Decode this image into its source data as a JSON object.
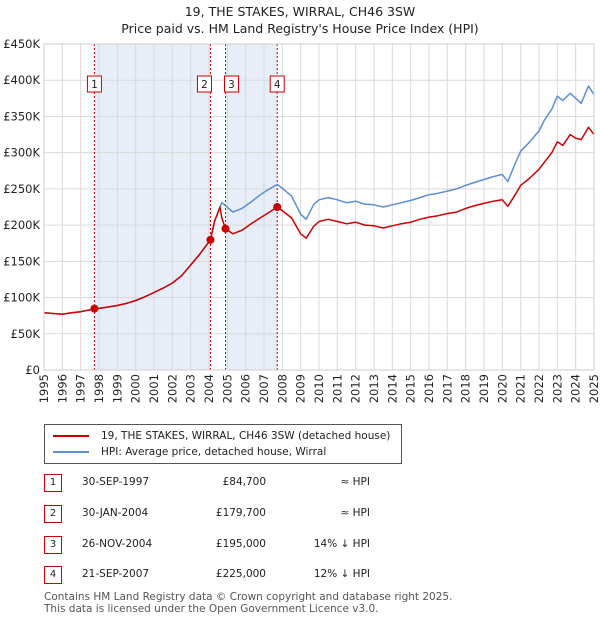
{
  "chart_data": {
    "type": "line",
    "title": "19, THE STAKES, WIRRAL, CH46 3SW",
    "subtitle": "Price paid vs. HM Land Registry's House Price Index (HPI)",
    "xlim": [
      1995,
      2025
    ],
    "ylim": [
      0,
      450000
    ],
    "y_ticks": [
      0,
      50000,
      100000,
      150000,
      200000,
      250000,
      300000,
      350000,
      400000,
      450000
    ],
    "y_tick_labels": [
      "£0",
      "£50K",
      "£100K",
      "£150K",
      "£200K",
      "£250K",
      "£300K",
      "£350K",
      "£400K",
      "£450K"
    ],
    "x_ticks": [
      1995,
      1996,
      1997,
      1998,
      1999,
      2000,
      2001,
      2002,
      2003,
      2004,
      2005,
      2006,
      2007,
      2008,
      2009,
      2010,
      2011,
      2012,
      2013,
      2014,
      2015,
      2016,
      2017,
      2018,
      2019,
      2020,
      2021,
      2022,
      2023,
      2024,
      2025
    ],
    "x_tick_labels": [
      "1995",
      "1996",
      "1997",
      "1998",
      "1999",
      "2000",
      "2001",
      "2002",
      "2003",
      "2004",
      "2005",
      "2006",
      "2007",
      "2008",
      "2009",
      "2010",
      "2011",
      "2012",
      "2013",
      "2014",
      "2015",
      "2016",
      "2017",
      "2018",
      "2019",
      "2020",
      "2021",
      "2022",
      "2023",
      "2024",
      "2025"
    ],
    "grid": true,
    "series": [
      {
        "name": "19, THE STAKES, WIRRAL, CH46 3SW (detached house)",
        "color": "#cc0000",
        "x": [
          1995.0,
          1995.5,
          1996.0,
          1996.5,
          1997.0,
          1997.5,
          1997.75,
          1998.0,
          1998.5,
          1999.0,
          1999.5,
          2000.0,
          2000.5,
          2001.0,
          2001.5,
          2002.0,
          2002.5,
          2003.0,
          2003.5,
          2004.08,
          2004.3,
          2004.6,
          2004.7,
          2004.9,
          2005.3,
          2005.8,
          2006.3,
          2006.8,
          2007.3,
          2007.72,
          2008.0,
          2008.5,
          2009.0,
          2009.3,
          2009.7,
          2010.0,
          2010.5,
          2011.0,
          2011.5,
          2012.0,
          2012.5,
          2013.0,
          2013.5,
          2014.0,
          2014.5,
          2015.0,
          2015.5,
          2016.0,
          2016.5,
          2017.0,
          2017.5,
          2018.0,
          2018.5,
          2019.0,
          2019.5,
          2020.0,
          2020.3,
          2020.7,
          2021.0,
          2021.5,
          2022.0,
          2022.3,
          2022.7,
          2023.0,
          2023.3,
          2023.7,
          2024.0,
          2024.3,
          2024.7,
          2025.0
        ],
        "y": [
          79000,
          78000,
          77000,
          79000,
          80500,
          83000,
          84700,
          85000,
          87000,
          89000,
          92000,
          96000,
          101000,
          107000,
          113000,
          120000,
          130000,
          145000,
          160000,
          179700,
          205000,
          225000,
          210000,
          195000,
          188000,
          193000,
          202000,
          210000,
          218000,
          225000,
          220000,
          210000,
          188000,
          182000,
          198000,
          205000,
          208000,
          205000,
          202000,
          204000,
          200000,
          199000,
          196000,
          199000,
          202000,
          204000,
          208000,
          211000,
          213000,
          216000,
          218000,
          223000,
          227000,
          230000,
          233000,
          235000,
          226000,
          242000,
          255000,
          265000,
          277000,
          287000,
          300000,
          315000,
          310000,
          325000,
          320000,
          318000,
          335000,
          325000
        ]
      },
      {
        "name": "HPI: Average price, detached house, Wirral",
        "color": "#5b8fcf",
        "x": [
          1995.0,
          1995.5,
          1996.0,
          1996.5,
          1997.0,
          1997.5,
          1997.75,
          1998.0,
          1998.5,
          1999.0,
          1999.5,
          2000.0,
          2000.5,
          2001.0,
          2001.5,
          2002.0,
          2002.5,
          2003.0,
          2003.5,
          2004.08,
          2004.3,
          2004.6,
          2004.7,
          2004.9,
          2005.3,
          2005.8,
          2006.3,
          2006.8,
          2007.3,
          2007.72,
          2008.0,
          2008.5,
          2009.0,
          2009.3,
          2009.7,
          2010.0,
          2010.5,
          2011.0,
          2011.5,
          2012.0,
          2012.5,
          2013.0,
          2013.5,
          2014.0,
          2014.5,
          2015.0,
          2015.5,
          2016.0,
          2016.5,
          2017.0,
          2017.5,
          2018.0,
          2018.5,
          2019.0,
          2019.5,
          2020.0,
          2020.3,
          2020.7,
          2021.0,
          2021.5,
          2022.0,
          2022.3,
          2022.7,
          2023.0,
          2023.3,
          2023.7,
          2024.0,
          2024.3,
          2024.7,
          2025.0
        ],
        "y": [
          79000,
          78000,
          77000,
          79000,
          80500,
          83000,
          84700,
          85000,
          87000,
          89000,
          92000,
          96000,
          101000,
          107000,
          113000,
          120000,
          130000,
          145000,
          160000,
          179700,
          205000,
          225000,
          231000,
          227000,
          218000,
          223000,
          232000,
          242000,
          250000,
          256000,
          251000,
          240000,
          215000,
          208000,
          228000,
          235000,
          238000,
          235000,
          231000,
          233000,
          229000,
          228000,
          225000,
          228000,
          231000,
          234000,
          238000,
          242000,
          244000,
          247000,
          250000,
          255000,
          259000,
          263000,
          267000,
          270000,
          260000,
          285000,
          302000,
          315000,
          330000,
          345000,
          360000,
          378000,
          372000,
          382000,
          375000,
          368000,
          392000,
          380000
        ]
      }
    ],
    "sales": [
      {
        "label": "1",
        "x": 1997.75,
        "price": 84700,
        "date": "30-SEP-1997",
        "price_text": "£84,700",
        "hpi_text": "≈ HPI"
      },
      {
        "label": "2",
        "x": 2004.08,
        "price": 179700,
        "date": "30-JAN-2004",
        "price_text": "£179,700",
        "hpi_text": "≈ HPI"
      },
      {
        "label": "3",
        "x": 2004.9,
        "price": 195000,
        "date": "26-NOV-2004",
        "price_text": "£195,000",
        "hpi_text": "14% ↓ HPI"
      },
      {
        "label": "4",
        "x": 2007.72,
        "price": 225000,
        "date": "21-SEP-2007",
        "price_text": "£225,000",
        "hpi_text": "12% ↓ HPI"
      }
    ],
    "shaded_periods": [
      [
        1997.75,
        2004.08
      ],
      [
        2004.9,
        2007.72
      ]
    ],
    "legend_placement": "below"
  },
  "colors": {
    "price_line": "#cc0000",
    "hpi_line": "#5b8fcf",
    "shade": "#e8eef8",
    "grid": "#d9d9d9",
    "vline": "#cc0000"
  },
  "legend": {
    "price_label": "19, THE STAKES, WIRRAL, CH46 3SW (detached house)",
    "hpi_label": "HPI: Average price, detached house, Wirral"
  },
  "footer": {
    "line1": "Contains HM Land Registry data © Crown copyright and database right 2025.",
    "line2": "This data is licensed under the Open Government Licence v3.0."
  }
}
